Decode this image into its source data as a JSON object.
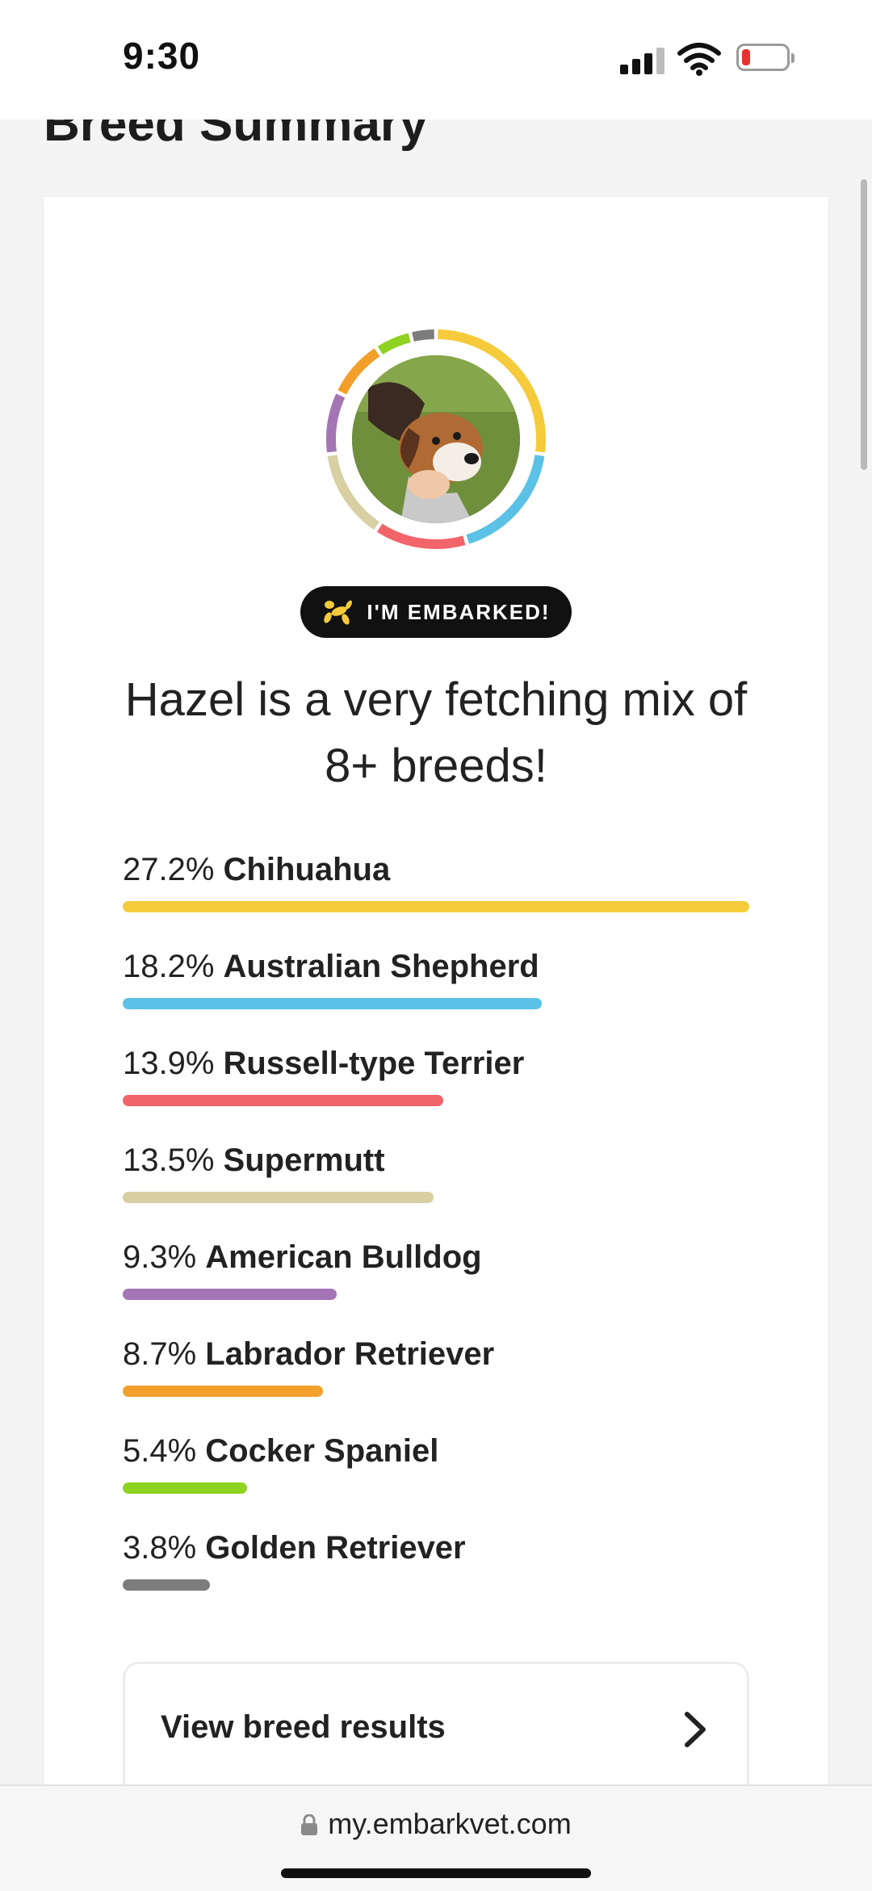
{
  "status": {
    "time": "9:30",
    "icons": [
      "signal-icon",
      "wifi-icon",
      "battery-low-icon"
    ],
    "battery_color": "#e8312f"
  },
  "page": {
    "heading": "Breed Summary"
  },
  "profile": {
    "badge_label": "I'M EMBARKED!",
    "badge_icon": "balloon-dog-icon",
    "headline": "Hazel is a very fetching mix of 8+ breeds!"
  },
  "breeds": [
    {
      "pct": "27.2%",
      "name": "Chihuahua",
      "value": 27.2,
      "color": "#f5cb3b"
    },
    {
      "pct": "18.2%",
      "name": "Australian Shepherd",
      "value": 18.2,
      "color": "#5bc1e6"
    },
    {
      "pct": "13.9%",
      "name": "Russell-type Terrier",
      "value": 13.9,
      "color": "#f0646a"
    },
    {
      "pct": "13.5%",
      "name": "Supermutt",
      "value": 13.5,
      "color": "#d8cfa2"
    },
    {
      "pct": "9.3%",
      "name": "American Bulldog",
      "value": 9.3,
      "color": "#a475b5"
    },
    {
      "pct": "8.7%",
      "name": "Labrador Retriever",
      "value": 8.7,
      "color": "#f2a02b"
    },
    {
      "pct": "5.4%",
      "name": "Cocker Spaniel",
      "value": 5.4,
      "color": "#8ed321"
    },
    {
      "pct": "3.8%",
      "name": "Golden Retriever",
      "value": 3.8,
      "color": "#7d7d7d"
    }
  ],
  "actions": {
    "view_results_label": "View breed results",
    "view_results_icon": "chevron-right-icon"
  },
  "browser": {
    "url": "my.embarkvet.com",
    "url_icon": "lock-icon"
  }
}
